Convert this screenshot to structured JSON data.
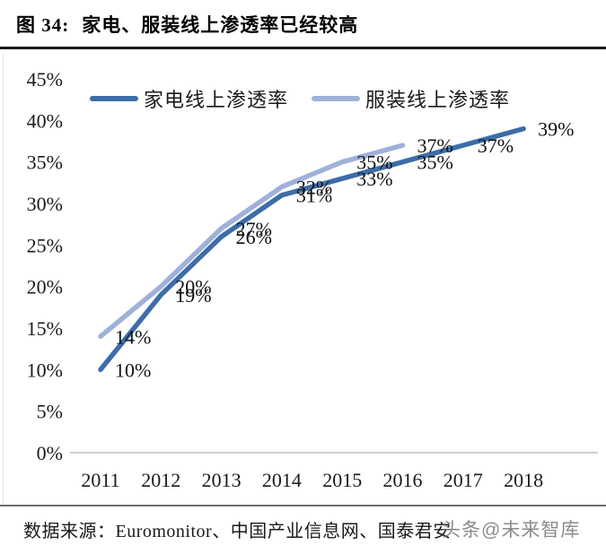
{
  "title": {
    "prefix": "图 34:",
    "text": "家电、服装线上渗透率已经较高"
  },
  "chart_data": {
    "type": "line",
    "title": "家电、服装线上渗透率已经较高",
    "xlabel": "",
    "ylabel": "",
    "categories": [
      "2011",
      "2012",
      "2013",
      "2014",
      "2015",
      "2016",
      "2017",
      "2018"
    ],
    "series": [
      {
        "name": "家电线上渗透率",
        "color": "#3d6da8",
        "values": [
          10,
          19,
          26,
          31,
          33,
          35,
          37,
          39
        ],
        "labels": [
          "10%",
          "19%",
          "26%",
          "31%",
          "33%",
          "35%",
          "37%",
          "39%"
        ]
      },
      {
        "name": "服装线上渗透率",
        "color": "#9fb1d9",
        "values": [
          14,
          20,
          27,
          32,
          35,
          37
        ],
        "labels": [
          "14%",
          "20%",
          "27%",
          "32%",
          "35%",
          "37%"
        ]
      }
    ],
    "ylim": [
      0,
      45
    ],
    "yticks": [
      "0%",
      "5%",
      "10%",
      "15%",
      "20%",
      "25%",
      "30%",
      "35%",
      "40%",
      "45%"
    ],
    "grid": false,
    "legend_position": "top",
    "axis_color": "#bfbfbf",
    "tick_label_color": "#1a1a1a",
    "data_label_color": "#111111"
  },
  "footer": {
    "source_label": "数据来源：Euromonitor、中国产业信息网、国泰君安",
    "watermark": "头条@未来智库"
  }
}
